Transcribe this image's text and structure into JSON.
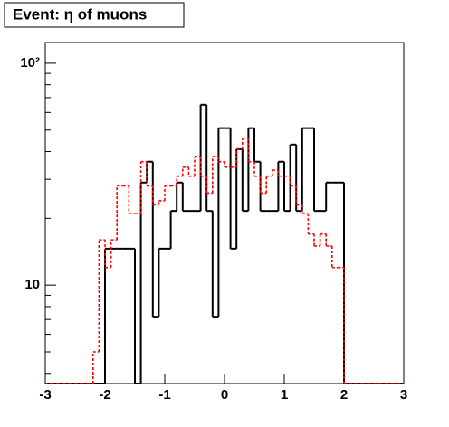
{
  "chart_data": {
    "type": "histogram",
    "title": "Event: η of muons",
    "bins": [
      -3,
      -2.9,
      -2.8,
      -2.7,
      -2.6,
      -2.5,
      -2.4,
      -2.3,
      -2.2,
      -2.1,
      -2,
      -1.9,
      -1.8,
      -1.7,
      -1.6,
      -1.5,
      -1.4,
      -1.3,
      -1.2,
      -1.1,
      -1,
      -0.9,
      -0.8,
      -0.7,
      -0.6,
      -0.5,
      -0.4,
      -0.3,
      -0.2,
      -0.1,
      0,
      0.1,
      0.2,
      0.3,
      0.4,
      0.5,
      0.6,
      0.7,
      0.8,
      0.9,
      1,
      1.1,
      1.2,
      1.3,
      1.4,
      1.5,
      1.6,
      1.7,
      1.8,
      1.9,
      2,
      2.1,
      2.2,
      2.3,
      2.4,
      2.5,
      2.6,
      2.7,
      2.8,
      2.9,
      3
    ],
    "series": [
      {
        "color": "#000000",
        "line_style": "solid",
        "values": [
          0,
          0,
          0,
          0,
          0,
          0,
          0,
          0,
          0,
          0,
          14.6,
          14.6,
          14.6,
          14.6,
          14.6,
          0,
          29,
          36,
          7.2,
          14.6,
          14.6,
          21.6,
          29,
          21.6,
          21.6,
          21.6,
          65,
          21.6,
          7.2,
          51,
          51,
          14.6,
          41,
          21.6,
          51,
          36,
          21.6,
          21.6,
          21.6,
          36,
          21.6,
          43,
          21.6,
          51,
          51,
          21.6,
          21.6,
          29,
          29,
          29,
          0,
          0,
          0,
          0,
          0,
          0,
          0,
          0,
          0,
          0
        ]
      },
      {
        "color": "#ff0000",
        "line_style": "dashed",
        "values": [
          0,
          0,
          0,
          0,
          0,
          0,
          0,
          0,
          5,
          16,
          12,
          16,
          28,
          28,
          21,
          21,
          36,
          28,
          23,
          24,
          28,
          28,
          31,
          34,
          31,
          38,
          31,
          26,
          38,
          36,
          34,
          34,
          41,
          46,
          36,
          31,
          26,
          31,
          33,
          31,
          31,
          28,
          23,
          21,
          17,
          15,
          17,
          15,
          12,
          12,
          0,
          0,
          0,
          0,
          0,
          0,
          0,
          0,
          0,
          0
        ]
      }
    ],
    "xlim": [
      -3,
      3
    ],
    "xticks": [
      -3,
      -2,
      -1,
      0,
      1,
      2,
      3
    ],
    "ylim": [
      3.6,
      124
    ],
    "log_y": true,
    "yticks": [
      10,
      {
        "value": 100,
        "label": "10²"
      }
    ],
    "yminorticks": [
      4,
      5,
      6,
      7,
      8,
      9,
      20,
      30,
      40,
      50,
      60,
      70,
      80,
      90
    ]
  }
}
